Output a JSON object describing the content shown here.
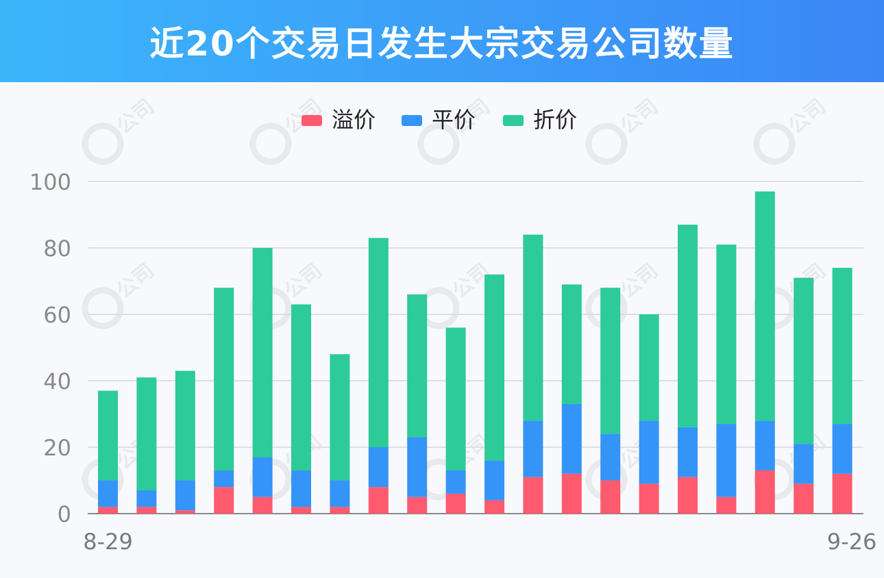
{
  "header": {
    "title": "近20个交易日发生大宗交易公司数量"
  },
  "chart_data": {
    "type": "bar",
    "stacked": true,
    "categories": [
      "8-29",
      "",
      "",
      "",
      "",
      "",
      "",
      "",
      "",
      "",
      "",
      "",
      "",
      "",
      "",
      "",
      "",
      "",
      "",
      "9-26"
    ],
    "series": [
      {
        "name": "溢价",
        "color": "#ff5a6e",
        "values": [
          2,
          2,
          1,
          8,
          5,
          2,
          2,
          8,
          5,
          6,
          4,
          11,
          12,
          10,
          9,
          11,
          5,
          13,
          9,
          12
        ]
      },
      {
        "name": "平价",
        "color": "#3594f7",
        "values": [
          8,
          5,
          9,
          5,
          12,
          11,
          8,
          12,
          18,
          7,
          12,
          17,
          21,
          14,
          19,
          15,
          22,
          15,
          12,
          15
        ]
      },
      {
        "name": "折价",
        "color": "#2ccb98",
        "values": [
          27,
          34,
          33,
          55,
          63,
          50,
          38,
          63,
          43,
          43,
          56,
          56,
          36,
          44,
          32,
          61,
          54,
          69,
          50,
          47
        ]
      }
    ],
    "ylim": [
      0,
      100
    ],
    "yticks": [
      0,
      20,
      40,
      60,
      80,
      100
    ],
    "grid": true,
    "legend_position": "top"
  },
  "watermark": {
    "text": "公司"
  }
}
